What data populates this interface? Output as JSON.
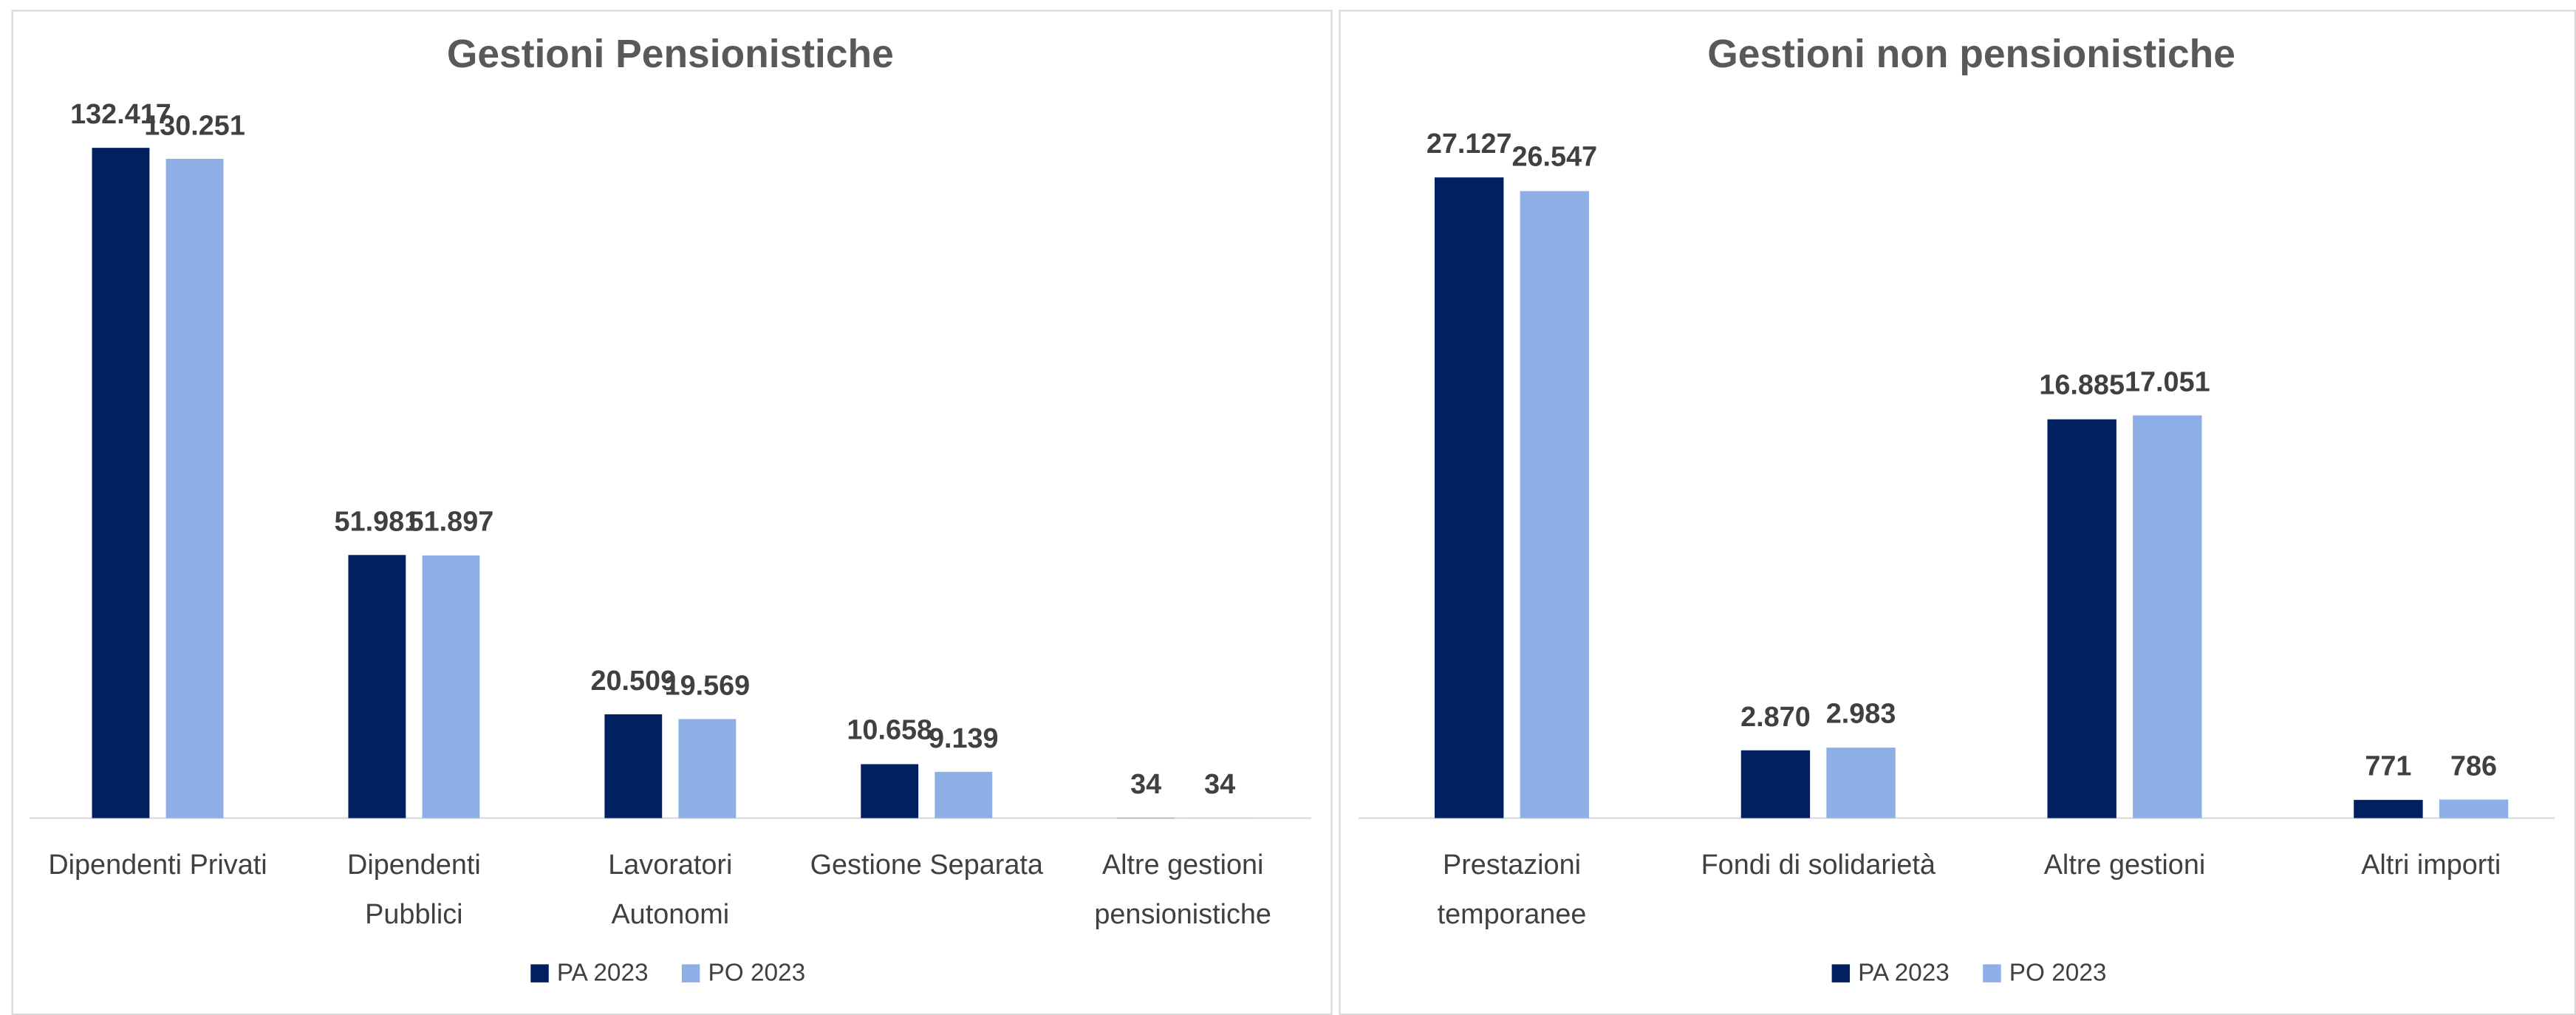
{
  "chart_data": [
    {
      "type": "bar",
      "title": "Gestioni Pensionistiche",
      "categories": [
        "Dipendenti Privati",
        "Dipendenti\nPubblici",
        "Lavoratori\nAutonomi",
        "Gestione Separata",
        "Altre gestioni\npensionistiche"
      ],
      "series": [
        {
          "name": "PA 2023",
          "color": "#002060",
          "values": [
            132417,
            51981,
            20509,
            10658,
            34
          ],
          "value_labels": [
            "132.417",
            "51.981",
            "20.509",
            "10.658",
            "34"
          ]
        },
        {
          "name": "PO 2023",
          "color": "#8eaee6",
          "values": [
            130251,
            51897,
            19569,
            9139,
            34
          ],
          "value_labels": [
            "130.251",
            "51.897",
            "19.569",
            "9.139",
            "34"
          ]
        }
      ],
      "legend": "bottom"
    },
    {
      "type": "bar",
      "title": "Gestioni non pensionistiche",
      "categories": [
        "Prestazioni\ntemporanee",
        "Fondi di solidarietà",
        "Altre gestioni",
        "Altri importi"
      ],
      "series": [
        {
          "name": "PA 2023",
          "color": "#002060",
          "values": [
            27127,
            2870,
            16885,
            771
          ],
          "value_labels": [
            "27.127",
            "2.870",
            "16.885",
            "771"
          ]
        },
        {
          "name": "PO 2023",
          "color": "#8eaee6",
          "values": [
            26547,
            2983,
            17051,
            786
          ],
          "value_labels": [
            "26.547",
            "2.983",
            "17.051",
            "786"
          ]
        }
      ],
      "legend": "bottom"
    }
  ]
}
